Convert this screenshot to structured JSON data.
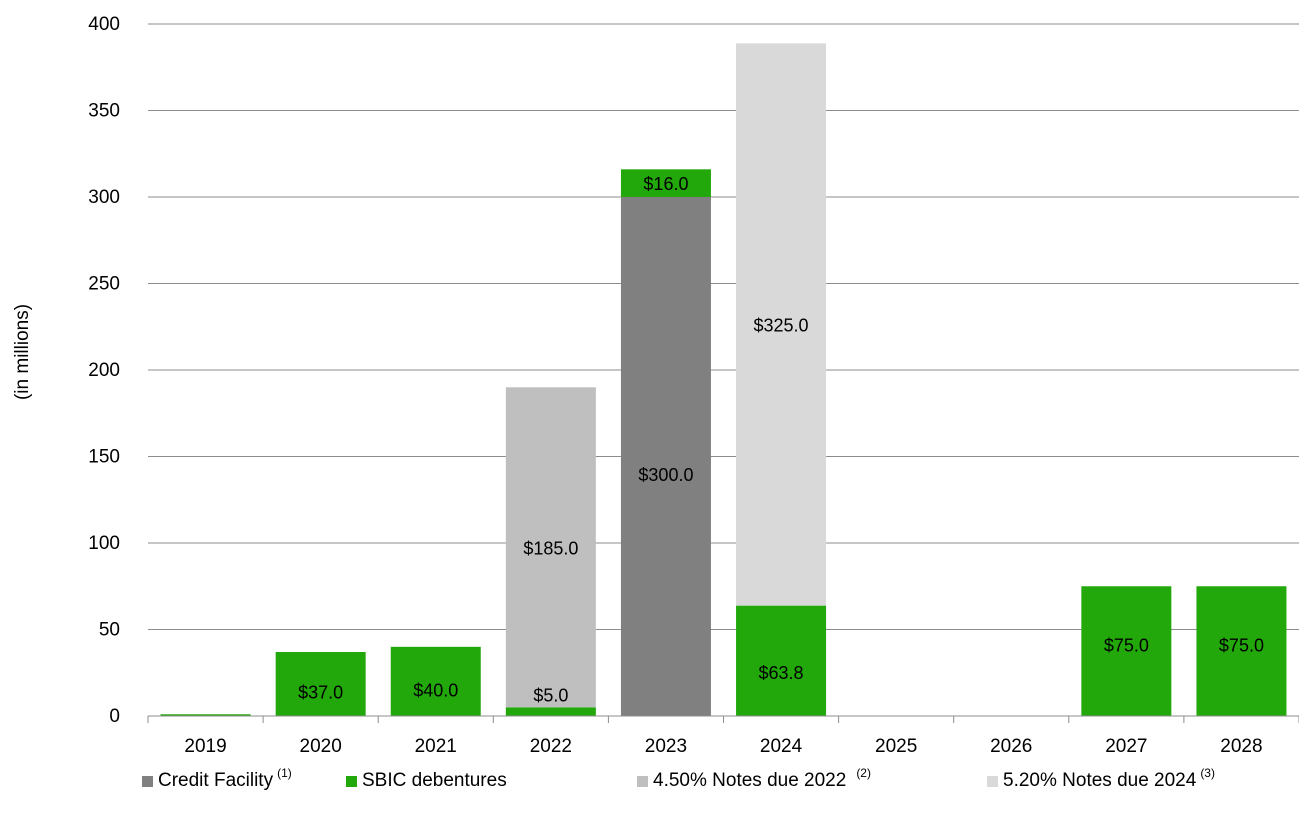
{
  "chart_data": {
    "type": "bar",
    "stacked": true,
    "title": "",
    "xlabel": "",
    "ylabel": "(in millions)",
    "ylim": [
      0,
      400
    ],
    "yticks": [
      0,
      50,
      100,
      150,
      200,
      250,
      300,
      350,
      400
    ],
    "grid": "horizontal",
    "legend_position": "bottom",
    "categories": [
      "2019",
      "2020",
      "2021",
      "2022",
      "2023",
      "2024",
      "2025",
      "2026",
      "2027",
      "2028"
    ],
    "series": [
      {
        "name": "Credit Facility",
        "note": "(1)",
        "color": "#808080",
        "values": [
          0,
          0,
          0,
          0,
          300,
          0,
          0,
          0,
          0,
          0
        ],
        "labels": [
          "",
          "",
          "",
          "",
          "$300.0",
          "",
          "",
          "",
          "",
          ""
        ]
      },
      {
        "name": "SBIC debentures",
        "note": "",
        "color": "#22a80a",
        "values": [
          1,
          37,
          40,
          5,
          16,
          63.8,
          0,
          0,
          75,
          75
        ],
        "labels": [
          "",
          "$37.0",
          "$40.0",
          "$5.0",
          "$16.0",
          "$63.8",
          "",
          "",
          "$75.0",
          "$75.0"
        ]
      },
      {
        "name": "4.50% Notes due 2022",
        "note": "(2)",
        "color": "#bfbfbf",
        "values": [
          0,
          0,
          0,
          185,
          0,
          0,
          0,
          0,
          0,
          0
        ],
        "labels": [
          "",
          "",
          "",
          "$185.0",
          "",
          "",
          "",
          "",
          "",
          ""
        ]
      },
      {
        "name": "5.20% Notes due 2024",
        "note": "(3)",
        "color": "#d9d9d9",
        "values": [
          0,
          0,
          0,
          0,
          0,
          325,
          0,
          0,
          0,
          0
        ],
        "labels": [
          "",
          "",
          "",
          "",
          "",
          "$325.0",
          "",
          "",
          "",
          ""
        ]
      }
    ]
  }
}
